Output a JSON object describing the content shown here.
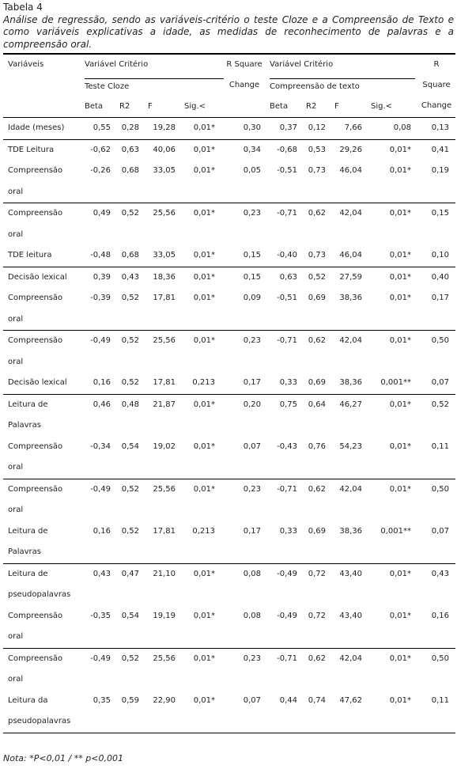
{
  "caption": {
    "label": "Tabela 4",
    "text": "Análise de regressão, sendo as variáveis-critério o teste Cloze e a Compreensão de Texto e como variáveis explicativas a idade, as medidas de reconhecimento de palavras e a compreensão oral."
  },
  "table": {
    "header": {
      "variables": "Variáveis",
      "criterion": "Variável Critério",
      "r_square_change": "R Square Change",
      "criteria": [
        "Teste Cloze",
        "Compreensão de texto"
      ],
      "columns": [
        "Beta",
        "R2",
        "F",
        "Sig.<"
      ]
    },
    "groups": [
      [
        {
          "variable": "Idade (meses)",
          "values": [
            "0,55",
            "0,28",
            "19,28",
            "0,01*",
            "0,30",
            "0,37",
            "0,12",
            "7,66",
            "0,08",
            "0,13"
          ]
        }
      ],
      [
        {
          "variable": "TDE Leitura",
          "values": [
            "-0,62",
            "0,63",
            "40,06",
            "0,01*",
            "0,34",
            "-0,68",
            "0,53",
            "29,26",
            "0,01*",
            "0,41"
          ]
        },
        {
          "variable": "Compreensão oral",
          "values": [
            "-0,26",
            "0,68",
            "33,05",
            "0,01*",
            "0,05",
            "-0,51",
            "0,73",
            "46,04",
            "0,01*",
            "0,19"
          ]
        }
      ],
      [
        {
          "variable": "Compreensão oral",
          "values": [
            "0,49",
            "0,52",
            "25,56",
            "0,01*",
            "0,23",
            "-0,71",
            "0,62",
            "42,04",
            "0,01*",
            "0,15"
          ]
        },
        {
          "variable": "TDE leitura",
          "values": [
            "-0,48",
            "0,68",
            "33,05",
            "0,01*",
            "0,15",
            "-0,40",
            "0,73",
            "46,04",
            "0,01*",
            "0,10"
          ]
        }
      ],
      [
        {
          "variable": "Decisão lexical",
          "values": [
            "0,39",
            "0,43",
            "18,36",
            "0,01*",
            "0,15",
            "0,63",
            "0,52",
            "27,59",
            "0,01*",
            "0,40"
          ]
        },
        {
          "variable": "Compreensão oral",
          "values": [
            "-0,39",
            "0,52",
            "17,81",
            "0,01*",
            "0,09",
            "-0,51",
            "0,69",
            "38,36",
            "0,01*",
            "0,17"
          ]
        }
      ],
      [
        {
          "variable": "Compreensão oral",
          "values": [
            "-0,49",
            "0,52",
            "25,56",
            "0,01*",
            "0,23",
            "-0,71",
            "0,62",
            "42,04",
            "0,01*",
            "0,50"
          ]
        },
        {
          "variable": "Decisão lexical",
          "values": [
            "0,16",
            "0,52",
            "17,81",
            "0,213",
            "0,17",
            "0,33",
            "0,69",
            "38,36",
            "0,001**",
            "0,07"
          ]
        }
      ],
      [
        {
          "variable": "Leitura de Palavras",
          "values": [
            "0,46",
            "0,48",
            "21,87",
            "0,01*",
            "0,20",
            "0,75",
            "0,64",
            "46,27",
            "0,01*",
            "0,52"
          ]
        },
        {
          "variable": "Compreensão oral",
          "values": [
            "-0,34",
            "0,54",
            "19,02",
            "0,01*",
            "0,07",
            "-0,43",
            "0,76",
            "54,23",
            "0,01*",
            "0,11"
          ]
        }
      ],
      [
        {
          "variable": "Compreensão oral",
          "values": [
            "-0,49",
            "0,52",
            "25,56",
            "0,01*",
            "0,23",
            "-0,71",
            "0,62",
            "42,04",
            "0,01*",
            "0,50"
          ]
        },
        {
          "variable": "Leitura de Palavras",
          "values": [
            "0,16",
            "0,52",
            "17,81",
            "0,213",
            "0,17",
            "0,33",
            "0,69",
            "38,36",
            "0,001**",
            "0,07"
          ]
        }
      ],
      [
        {
          "variable": "Leitura de pseudopalavras",
          "values": [
            "0,43",
            "0,47",
            "21,10",
            "0,01*",
            "0,08",
            "-0,49",
            "0,72",
            "43,40",
            "0,01*",
            "0,43"
          ]
        },
        {
          "variable": "Compreensão oral",
          "values": [
            "-0,35",
            "0,54",
            "19,19",
            "0,01*",
            "0,08",
            "-0,49",
            "0,72",
            "43,40",
            "0,01*",
            "0,16"
          ]
        }
      ],
      [
        {
          "variable": "Compreensão oral",
          "values": [
            "-0,49",
            "0,52",
            "25,56",
            "0,01*",
            "0,23",
            "-0,71",
            "0,62",
            "42,04",
            "0,01*",
            "0,50"
          ]
        },
        {
          "variable": "Leitura da pseudopalavras",
          "values": [
            "0,35",
            "0,59",
            "22,90",
            "0,01*",
            "0,07",
            "0,44",
            "0,74",
            "47,62",
            "0,01*",
            "0,11"
          ]
        }
      ]
    ]
  },
  "note": "Nota: *P<0,01 / ** p<0,001"
}
